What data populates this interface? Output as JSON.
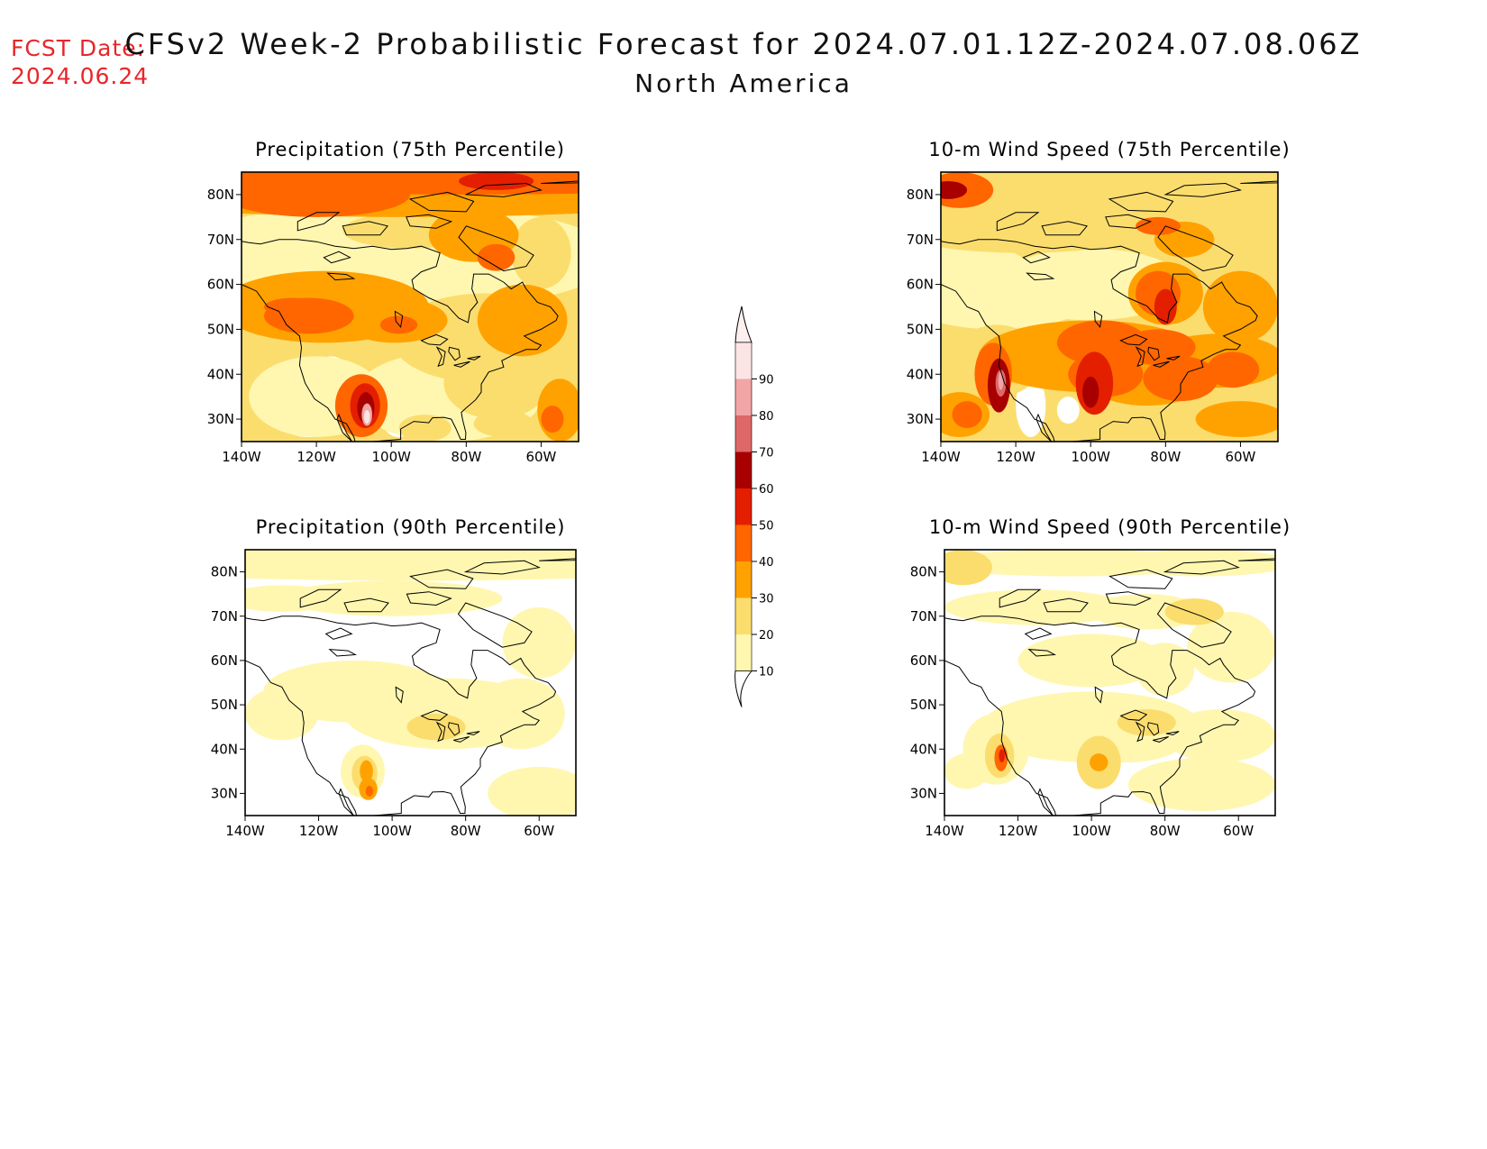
{
  "header": {
    "fcst_label": "FCST Date:",
    "fcst_date": "2024.06.24",
    "title": "CFSv2 Week-2 Probabilistic Forecast for 2024.07.01.12Z-2024.07.08.06Z",
    "subtitle": "North America"
  },
  "panels": [
    {
      "title": "Precipitation (75th Percentile)",
      "intensity": "high",
      "hotspots": [
        "southwest-monsoon",
        "northern-rockies",
        "arctic-north"
      ]
    },
    {
      "title": "10-m Wind Speed (75th Percentile)",
      "intensity": "high",
      "hotspots": [
        "california-coast",
        "southern-plains",
        "hudson-bay"
      ]
    },
    {
      "title": "Precipitation (90th Percentile)",
      "intensity": "low",
      "hotspots": [
        "southwest-monsoon"
      ]
    },
    {
      "title": "10-m Wind Speed (90th Percentile)",
      "intensity": "low",
      "hotspots": [
        "california-coast",
        "southern-plains"
      ]
    }
  ],
  "axes": {
    "lat_labels": [
      "80N",
      "70N",
      "60N",
      "50N",
      "40N",
      "30N"
    ],
    "lon_labels": [
      "140W",
      "120W",
      "100W",
      "80W",
      "60W"
    ]
  },
  "colorbar": {
    "labels": [
      "90",
      "80",
      "70",
      "60",
      "50",
      "40",
      "30",
      "20",
      "10"
    ],
    "colors": [
      "#fde4e4",
      "#f2a5a5",
      "#de6868",
      "#a80000",
      "#e41f00",
      "#ff6600",
      "#ffa200",
      "#fbdd6e",
      "#fff7b0"
    ]
  }
}
